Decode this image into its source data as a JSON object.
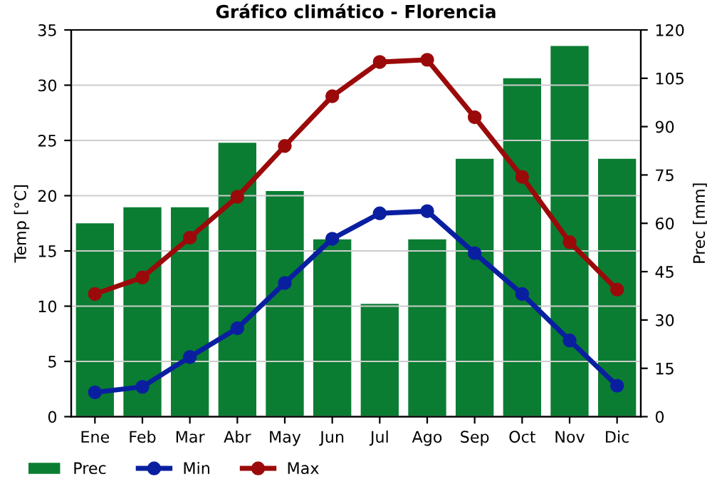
{
  "chart_data": {
    "type": "line",
    "title": "Gráfico climático - Florencia",
    "categories": [
      "Ene",
      "Feb",
      "Mar",
      "Abr",
      "May",
      "Jun",
      "Jul",
      "Ago",
      "Sep",
      "Oct",
      "Nov",
      "Dic"
    ],
    "series": [
      {
        "name": "Prec",
        "type": "bar",
        "axis": "y2",
        "color": "#0a7d32",
        "values": [
          60,
          65,
          65,
          85,
          70,
          55,
          35,
          55,
          80,
          105,
          115,
          80
        ]
      },
      {
        "name": "Min",
        "color": "#0a1fa0",
        "marker": "circle",
        "values": [
          2.2,
          2.7,
          5.4,
          8.0,
          12.1,
          16.1,
          18.4,
          18.6,
          14.8,
          11.1,
          6.9,
          2.8
        ]
      },
      {
        "name": "Max",
        "color": "#9b0a0a",
        "marker": "circle",
        "values": [
          11.1,
          12.6,
          16.2,
          19.9,
          24.5,
          29.0,
          32.1,
          32.3,
          27.1,
          21.7,
          15.8,
          11.5
        ]
      }
    ],
    "ylabel": "Temp [°C]",
    "y2label": "Prec [mm]",
    "ylim": [
      0,
      35
    ],
    "yticks": [
      0,
      5,
      10,
      15,
      20,
      25,
      30,
      35
    ],
    "y2lim": [
      0,
      120
    ],
    "y2ticks": [
      0,
      15,
      30,
      45,
      60,
      75,
      90,
      105,
      120
    ],
    "grid": "y",
    "legend": "bottom"
  }
}
